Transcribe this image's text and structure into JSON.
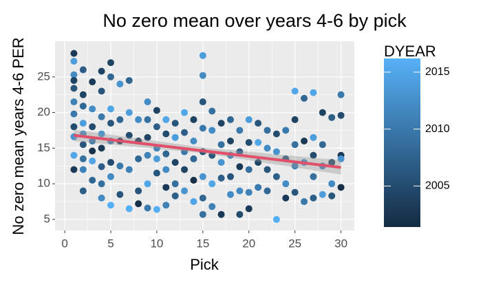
{
  "chart_data": {
    "type": "scatter",
    "title": "No zero mean over years 4-6 by pick",
    "x_label": "Pick",
    "y_label": "No zero mean years 4-6 PER",
    "legend_title": "DYEAR",
    "xlim": [
      -1.05,
      31.45
    ],
    "xticks": [
      0,
      5,
      10,
      15,
      20,
      25,
      30
    ],
    "ylim": [
      3.45,
      30.0
    ],
    "yticks": [
      5,
      10,
      15,
      20,
      25
    ],
    "grid": true,
    "colorbar": {
      "lim": [
        2001.4,
        2016.2
      ],
      "ticks": [
        2005,
        2010,
        2015
      ],
      "low": "#132B43",
      "high": "#56B1F7"
    },
    "trend": {
      "color": "#E0506A",
      "x": [
        1,
        30
      ],
      "values": [
        16.8,
        12.3
      ],
      "band_x": [
        1,
        15,
        30
      ],
      "band_low": [
        16.0,
        14.3,
        11.3
      ],
      "band_high": [
        17.6,
        15.1,
        13.3
      ]
    },
    "series": [
      {
        "x": [
          1,
          1,
          1,
          1,
          1,
          1,
          1,
          1,
          1,
          1,
          1,
          2,
          2,
          2,
          2,
          2,
          2,
          2,
          2,
          2,
          3,
          3,
          3,
          3,
          3,
          3,
          3,
          4,
          4,
          4,
          4,
          4,
          4,
          4,
          4,
          5,
          5,
          5,
          5,
          5,
          5,
          5,
          5,
          6,
          6,
          6,
          6,
          6,
          7,
          7,
          7,
          7,
          7,
          8,
          8,
          8,
          8,
          8,
          9,
          9,
          9,
          9,
          9,
          9,
          10,
          10,
          10,
          10,
          10,
          10,
          11,
          11,
          11,
          11,
          11,
          11,
          12,
          12,
          12,
          12,
          12,
          13,
          13,
          13,
          13,
          13,
          14,
          14,
          14,
          14,
          14,
          15,
          15,
          15,
          15,
          15,
          15,
          15,
          15,
          16,
          16,
          16,
          16,
          16,
          17,
          17,
          17,
          17,
          17,
          18,
          18,
          18,
          18,
          18,
          19,
          19,
          19,
          19,
          19,
          20,
          20,
          20,
          20,
          20,
          21,
          21,
          21,
          21,
          22,
          22,
          22,
          22,
          23,
          23,
          23,
          23,
          24,
          24,
          24,
          24,
          25,
          25,
          25,
          25,
          25,
          26,
          26,
          26,
          26,
          27,
          27,
          27,
          27,
          27,
          28,
          28,
          28,
          28,
          29,
          29,
          29,
          29,
          30,
          30,
          30,
          30,
          30
        ],
        "values": [
          28.3,
          27.2,
          25.3,
          24.5,
          23.4,
          21.5,
          19.8,
          18.0,
          16.6,
          14.0,
          12.0,
          26.0,
          22.5,
          20.9,
          18.5,
          17.0,
          15.5,
          13.5,
          12.0,
          9.0,
          24.3,
          20.5,
          18.0,
          16.0,
          14.6,
          13.2,
          10.5,
          25.8,
          23.0,
          19.4,
          17.0,
          15.0,
          12.4,
          10.0,
          8.0,
          27.0,
          25.0,
          20.5,
          18.5,
          16.0,
          13.0,
          11.0,
          7.0,
          24.0,
          19.0,
          16.0,
          12.5,
          8.5,
          24.5,
          20.0,
          16.8,
          12.0,
          6.5,
          19.0,
          16.0,
          13.5,
          9.0,
          7.2,
          21.5,
          19.0,
          16.5,
          14.0,
          10.0,
          6.6,
          20.3,
          18.0,
          15.0,
          13.5,
          11.5,
          6.4,
          19.0,
          17.0,
          14.2,
          12.0,
          9.5,
          7.0,
          18.5,
          16.5,
          13.0,
          10.0,
          8.3,
          20.0,
          17.2,
          14.5,
          12.0,
          9.0,
          19.0,
          16.0,
          13.5,
          10.5,
          7.5,
          28.0,
          25.2,
          21.5,
          17.8,
          14.5,
          11.0,
          8.0,
          5.7,
          20.2,
          17.5,
          14.0,
          10.0,
          6.8,
          18.5,
          15.5,
          13.0,
          10.8,
          5.7,
          19.0,
          16.0,
          14.0,
          11.0,
          8.5,
          17.5,
          14.5,
          12.4,
          9.0,
          5.7,
          19.0,
          15.8,
          12.0,
          8.8,
          6.5,
          18.5,
          15.8,
          13.0,
          9.5,
          17.5,
          15.0,
          12.0,
          9.0,
          17.0,
          14.5,
          11.0,
          5.0,
          17.5,
          13.5,
          10.0,
          8.0,
          23.0,
          19.0,
          15.5,
          12.5,
          8.8,
          22.0,
          16.0,
          13.0,
          7.5,
          22.8,
          16.5,
          14.0,
          11.0,
          8.0,
          20.0,
          15.5,
          12.5,
          8.5,
          19.3,
          13.0,
          10.0,
          8.3,
          22.5,
          19.6,
          14.0,
          13.5,
          9.5
        ],
        "year": [
          2003,
          2014,
          2012,
          2004,
          2006,
          2011,
          2010,
          2005,
          2013,
          2015,
          2003,
          2007,
          2004,
          2008,
          2014,
          2012,
          2006,
          2009,
          2011,
          2007,
          2003,
          2012,
          2005,
          2010,
          2002,
          2015,
          2008,
          2004,
          2006,
          2010,
          2013,
          2003,
          2007,
          2009,
          2012,
          2004,
          2008,
          2015,
          2006,
          2011,
          2005,
          2012,
          2016,
          2013,
          2008,
          2003,
          2010,
          2006,
          2008,
          2014,
          2005,
          2011,
          2016,
          2012,
          2003,
          2008,
          2006,
          2002,
          2012,
          2009,
          2004,
          2011,
          2015,
          2010,
          2004,
          2007,
          2011,
          2014,
          2006,
          2016,
          2015,
          2005,
          2008,
          2012,
          2003,
          2011,
          2006,
          2014,
          2004,
          2009,
          2007,
          2015,
          2007,
          2010,
          2004,
          2013,
          2004,
          2012,
          2008,
          2002,
          2015,
          2014,
          2012,
          2006,
          2010,
          2005,
          2013,
          2008,
          2009,
          2009,
          2012,
          2006,
          2015,
          2011,
          2004,
          2009,
          2013,
          2007,
          2003,
          2008,
          2004,
          2011,
          2006,
          2012,
          2010,
          2007,
          2003,
          2012,
          2005,
          2014,
          2005,
          2009,
          2011,
          2003,
          2006,
          2015,
          2004,
          2010,
          2009,
          2012,
          2006,
          2008,
          2005,
          2013,
          2007,
          2016,
          2010,
          2006,
          2012,
          2003,
          2015,
          2004,
          2009,
          2011,
          2006,
          2008,
          2003,
          2012,
          2010,
          2015,
          2014,
          2005,
          2009,
          2007,
          2004,
          2008,
          2011,
          2014,
          2007,
          2004,
          2012,
          2006,
          2010,
          2005,
          2003,
          2013,
          2002
        ]
      }
    ]
  }
}
